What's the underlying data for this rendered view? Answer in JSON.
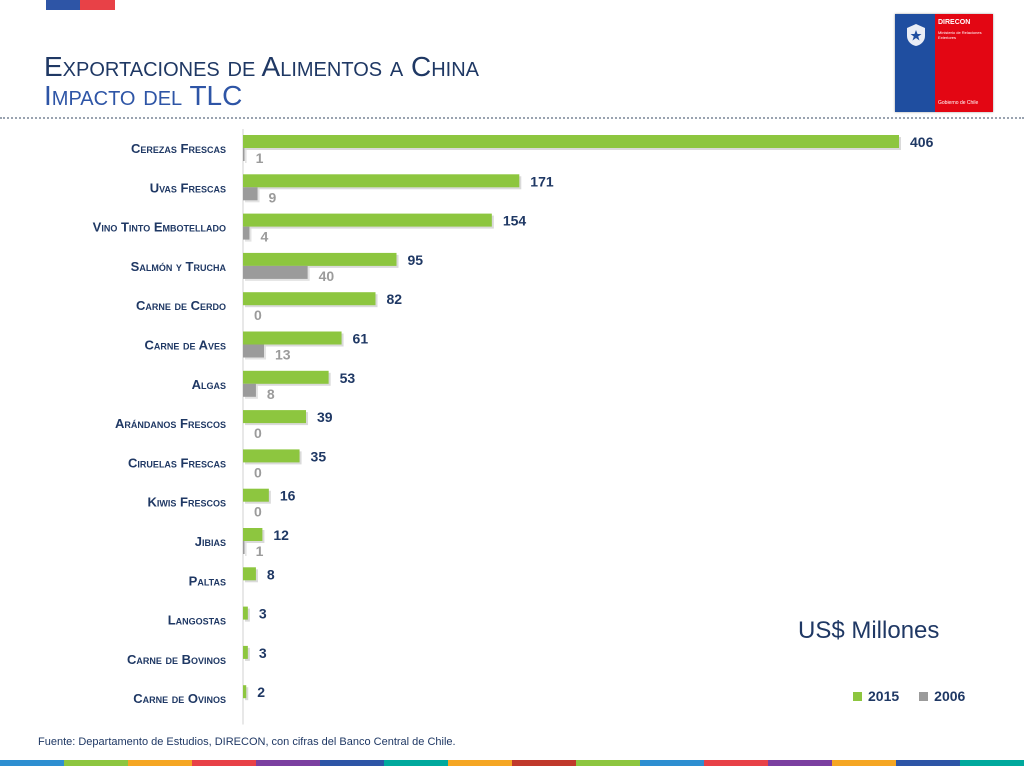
{
  "header": {
    "title": "Exportaciones de Alimentos a China",
    "subtitle": "Impacto del TLC"
  },
  "logo": {
    "brand": "DIRECON",
    "subtitle": "Ministerio de Relaciones Exteriores",
    "footer": "Gobierno de Chile",
    "colors": {
      "blue": "#1f4ea0",
      "red": "#e30613"
    }
  },
  "units": "US$ Millones",
  "source": "Fuente: Departamento de Estudios, DIRECON, con cifras del Banco Central de Chile.",
  "colors": {
    "series_2015": "#8dc63f",
    "series_2006": "#9b9b9b",
    "title": "#1f3864"
  },
  "chart_data": {
    "type": "bar",
    "orientation": "horizontal",
    "categories": [
      "Cerezas Frescas",
      "Uvas Frescas",
      "Vino Tinto Embotellado",
      "Salmón y Trucha",
      "Carne de Cerdo",
      "Carne de Aves",
      "Algas",
      "Arándanos Frescos",
      "Ciruelas Frescas",
      "Kiwis Frescos",
      "Jibias",
      "Paltas",
      "Langostas",
      "Carne de Bovinos",
      "Carne de Ovinos"
    ],
    "series": [
      {
        "name": "2015",
        "values": [
          406,
          171,
          154,
          95,
          82,
          61,
          53,
          39,
          35,
          16,
          12,
          8,
          3,
          3,
          2
        ]
      },
      {
        "name": "2006",
        "values": [
          1,
          9,
          4,
          40,
          0,
          13,
          8,
          0,
          0,
          0,
          1,
          null,
          null,
          null,
          null
        ]
      }
    ],
    "xlim": [
      0,
      406
    ],
    "legend_position": "bottom-right",
    "grid": false
  }
}
